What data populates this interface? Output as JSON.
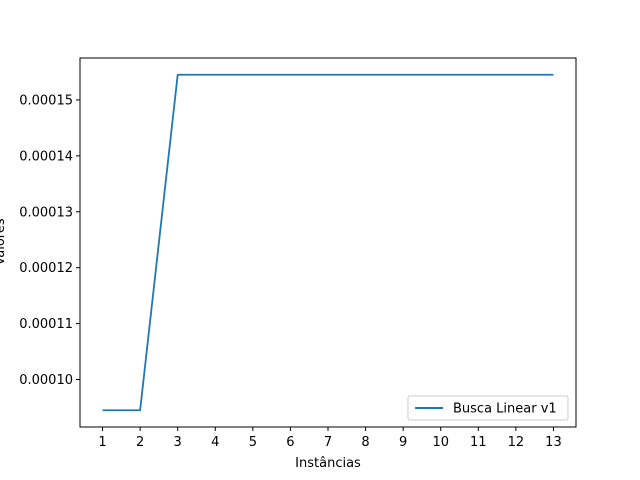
{
  "chart_data": {
    "type": "line",
    "title": "",
    "xlabel": "Instâncias",
    "ylabel": "Valores",
    "x": [
      1,
      2,
      3,
      4,
      5,
      6,
      7,
      8,
      9,
      10,
      11,
      12,
      13
    ],
    "series": [
      {
        "name": "Busca Linear v1",
        "color": "#1f77b4",
        "values": [
          9.45e-05,
          9.45e-05,
          0.0001545,
          0.0001545,
          0.0001545,
          0.0001545,
          0.0001545,
          0.0001545,
          0.0001545,
          0.0001545,
          0.0001545,
          0.0001545,
          0.0001545
        ]
      }
    ],
    "xticks": [
      "1",
      "2",
      "3",
      "4",
      "5",
      "6",
      "7",
      "8",
      "9",
      "10",
      "11",
      "12",
      "13"
    ],
    "yticks": [
      0.0001,
      0.00011,
      0.00012,
      0.00013,
      0.00014,
      0.00015
    ],
    "ytick_labels": [
      "0.00010",
      "0.00011",
      "0.00012",
      "0.00013",
      "0.00014",
      "0.00015"
    ],
    "xlim": [
      0.4,
      13.6
    ],
    "ylim": [
      9.15e-05,
      0.0001575
    ],
    "grid": false,
    "legend_position": "lower-right"
  }
}
